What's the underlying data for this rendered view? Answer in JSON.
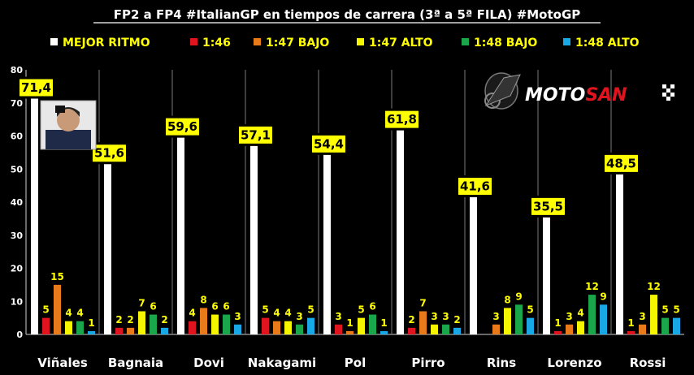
{
  "chart_data": {
    "type": "bar",
    "title": "FP2 a FP4 #ItalianGP en tiempos de carrera (3ª a 5ª FILA) #MotoGP",
    "categories": [
      "Viñales",
      "Bagnaia",
      "Dovi",
      "Nakagami",
      "Pol",
      "Pirro",
      "Rins",
      "Lorenzo",
      "Rossi"
    ],
    "series": [
      {
        "name": "MEJOR RITMO",
        "color": "#ffffff",
        "values": [
          71.4,
          51.6,
          59.6,
          57.1,
          54.4,
          61.8,
          41.6,
          35.5,
          48.5
        ],
        "labels": [
          "71,4",
          "51,6",
          "59,6",
          "57,1",
          "54,4",
          "61,8",
          "41,6",
          "35,5",
          "48,5"
        ]
      },
      {
        "name": "1:46",
        "color": "#e0141e",
        "values": [
          5,
          2,
          4,
          5,
          3,
          2,
          0,
          1,
          1
        ],
        "labels": [
          "5",
          "2",
          "4",
          "5",
          "3",
          "2",
          "",
          "1",
          "1"
        ]
      },
      {
        "name": "1:47 BAJO",
        "color": "#e87a1a",
        "values": [
          15,
          2,
          8,
          4,
          1,
          7,
          3,
          3,
          3
        ],
        "labels": [
          "15",
          "2",
          "8",
          "4",
          "1",
          "7",
          "3",
          "3",
          "3"
        ]
      },
      {
        "name": "1:47 ALTO",
        "color": "#f5f500",
        "values": [
          4,
          7,
          6,
          4,
          5,
          3,
          8,
          4,
          12
        ],
        "labels": [
          "4",
          "7",
          "6",
          "4",
          "5",
          "3",
          "8",
          "4",
          "12"
        ]
      },
      {
        "name": "1:48 BAJO",
        "color": "#1aa64a",
        "values": [
          4,
          6,
          6,
          3,
          6,
          3,
          9,
          12,
          5
        ],
        "labels": [
          "4",
          "6",
          "6",
          "3",
          "6",
          "3",
          "9",
          "12",
          "5"
        ]
      },
      {
        "name": "1:48 ALTO",
        "color": "#18a8e6",
        "values": [
          1,
          2,
          3,
          5,
          1,
          2,
          5,
          9,
          5
        ],
        "labels": [
          "1",
          "2",
          "3",
          "5",
          "1",
          "2",
          "5",
          "9",
          "5"
        ]
      }
    ],
    "ylim": [
      0,
      80
    ],
    "yticks": [
      0,
      10,
      20,
      30,
      40,
      50,
      60,
      70,
      80
    ],
    "grid": false,
    "legend": "top",
    "logo": {
      "part1": "MOTO",
      "part2": "SAN"
    }
  }
}
